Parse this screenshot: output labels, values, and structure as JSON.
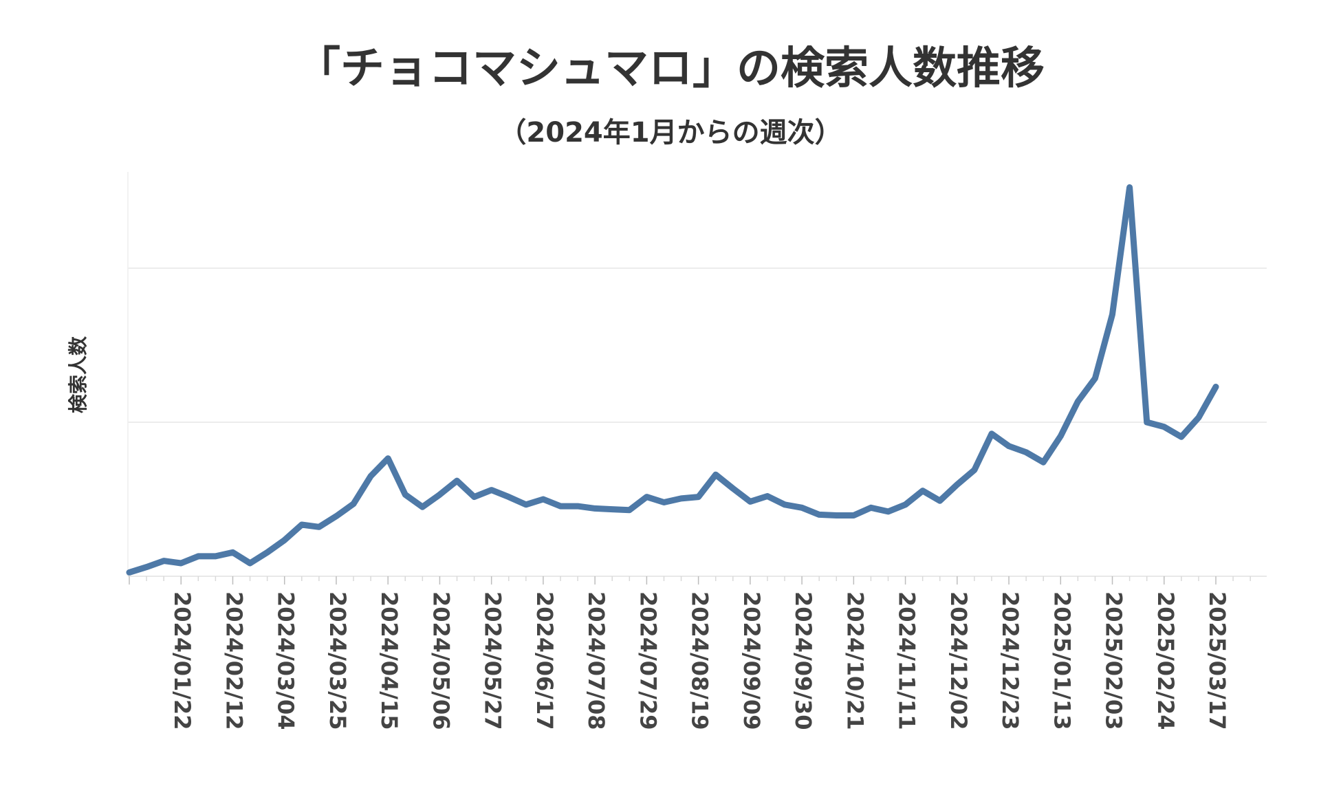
{
  "chart_data": {
    "type": "line",
    "title": "「チョコマシュマロ」の検索人数推移",
    "subtitle": "（2024年1月からの週次）",
    "xlabel": "",
    "ylabel": "検索人数",
    "ytick_labels": [],
    "grid": true,
    "legend": "none",
    "line_color": "#4e79a7",
    "x_tick_labels": [
      "2024/01/22",
      "2024/02/12",
      "2024/03/04",
      "2024/03/25",
      "2024/04/15",
      "2024/05/06",
      "2024/05/27",
      "2024/06/17",
      "2024/07/08",
      "2024/07/29",
      "2024/08/19",
      "2024/09/09",
      "2024/09/30",
      "2024/10/21",
      "2024/11/11",
      "2024/12/02",
      "2024/12/23",
      "2025/01/13",
      "2025/02/03",
      "2025/02/24",
      "2025/03/17"
    ],
    "x": [
      "2024/01/01",
      "2024/01/08",
      "2024/01/15",
      "2024/01/22",
      "2024/01/29",
      "2024/02/05",
      "2024/02/12",
      "2024/02/19",
      "2024/02/26",
      "2024/03/04",
      "2024/03/11",
      "2024/03/18",
      "2024/03/25",
      "2024/04/01",
      "2024/04/08",
      "2024/04/15",
      "2024/04/22",
      "2024/04/29",
      "2024/05/06",
      "2024/05/13",
      "2024/05/20",
      "2024/05/27",
      "2024/06/03",
      "2024/06/10",
      "2024/06/17",
      "2024/06/24",
      "2024/07/01",
      "2024/07/08",
      "2024/07/15",
      "2024/07/22",
      "2024/07/29",
      "2024/08/05",
      "2024/08/12",
      "2024/08/19",
      "2024/08/26",
      "2024/09/02",
      "2024/09/09",
      "2024/09/16",
      "2024/09/23",
      "2024/09/30",
      "2024/10/07",
      "2024/10/14",
      "2024/10/21",
      "2024/10/28",
      "2024/11/04",
      "2024/11/11",
      "2024/11/18",
      "2024/11/25",
      "2024/12/02",
      "2024/12/09",
      "2024/12/16",
      "2024/12/23",
      "2024/12/30",
      "2025/01/06",
      "2025/01/13",
      "2025/01/20",
      "2025/01/27",
      "2025/02/03",
      "2025/02/10",
      "2025/02/17",
      "2025/02/24",
      "2025/03/03",
      "2025/03/10",
      "2025/03/17"
    ],
    "series": [
      {
        "values": [
          0.05,
          0.12,
          0.2,
          0.17,
          0.26,
          0.26,
          0.31,
          0.17,
          0.31,
          0.47,
          0.67,
          0.64,
          0.78,
          0.94,
          1.3,
          1.53,
          1.06,
          0.9,
          1.06,
          1.24,
          1.03,
          1.12,
          1.03,
          0.93,
          1.0,
          0.91,
          0.91,
          0.88,
          0.87,
          0.86,
          1.03,
          0.96,
          1.01,
          1.03,
          1.32,
          1.14,
          0.97,
          1.04,
          0.93,
          0.89,
          0.8,
          0.79,
          0.79,
          0.89,
          0.84,
          0.93,
          1.11,
          0.98,
          1.19,
          1.38,
          1.85,
          1.69,
          1.61,
          1.48,
          1.82,
          2.27,
          2.57,
          3.4,
          5.05,
          2.0,
          1.94,
          1.81,
          2.06,
          2.46
        ]
      }
    ],
    "ylim": [
      0,
      5.25
    ],
    "gridlines_at": [
      0,
      2,
      4
    ]
  }
}
